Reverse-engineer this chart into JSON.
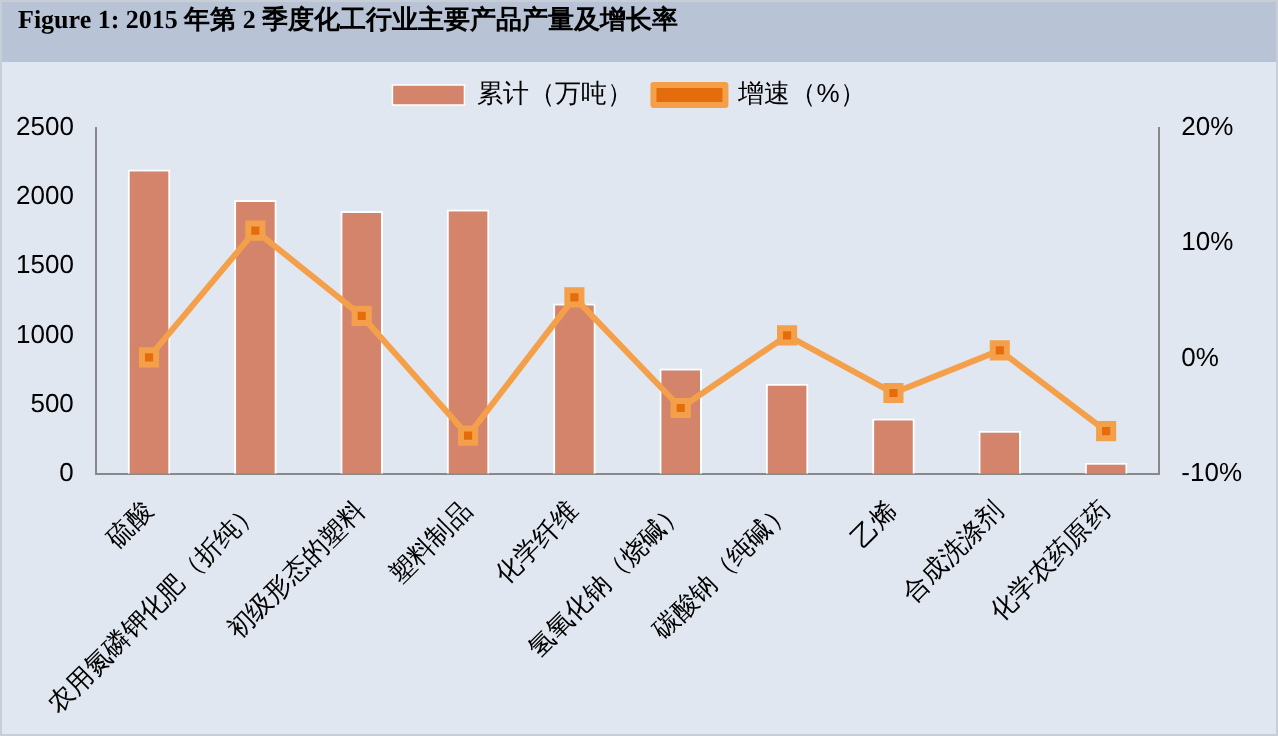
{
  "chart_data": {
    "type": "bar",
    "title": "Figure 1: 2015 年第 2 季度化工行业主要产品产量及增长率",
    "categories": [
      "硫酸",
      "农用氮磷钾化肥（折纯）",
      "初级形态的塑料",
      "塑料制品",
      "化学纤维",
      "氢氧化钠（烧碱）",
      "碳酸钠（纯碱）",
      "乙烯",
      "合成洗涤剂",
      "化学农药原药"
    ],
    "series": [
      {
        "name": "累计（万吨）",
        "color": "#d4846a",
        "values": [
          2200,
          1980,
          1900,
          1910,
          1230,
          760,
          650,
          400,
          310,
          80
        ]
      },
      {
        "name": "增速（%）",
        "type": "line",
        "axis": "y2",
        "color": "#f4a04a",
        "marker": "square",
        "values": [
          0.1,
          11.1,
          3.7,
          -6.7,
          5.3,
          -4.3,
          2.0,
          -3.0,
          0.7,
          -6.3
        ]
      }
    ],
    "ylim": [
      0,
      2500
    ],
    "yticks": [
      0,
      500,
      1000,
      1500,
      2000,
      2500
    ],
    "y2lim": [
      -10,
      20
    ],
    "y2ticks": [
      {
        "value": -10,
        "label": "-10%"
      },
      {
        "value": 0,
        "label": "0%"
      },
      {
        "value": 10,
        "label": "10%"
      },
      {
        "value": 20,
        "label": "20%"
      }
    ],
    "grid": false,
    "legend": "top"
  }
}
